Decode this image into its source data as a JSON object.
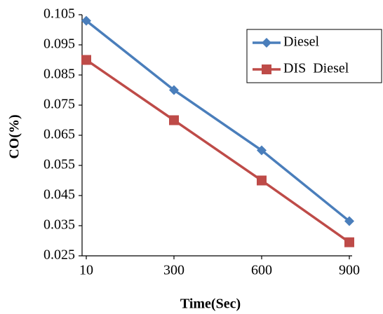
{
  "chart_data": {
    "type": "line",
    "x_label": "Time(Sec)",
    "y_label": "CO(%)",
    "categories": [
      "10",
      "300",
      "600",
      "900"
    ],
    "series": [
      {
        "name": "Diesel",
        "color": "#4a7ebb",
        "marker": "diamond",
        "values": [
          0.103,
          0.08,
          0.06,
          0.0365
        ]
      },
      {
        "name": "DIS  Diesel",
        "color": "#be4b48",
        "marker": "square",
        "values": [
          0.09,
          0.07,
          0.05,
          0.0295
        ]
      }
    ],
    "ylim": [
      0.025,
      0.105
    ],
    "yticks": [
      0.025,
      0.035,
      0.045,
      0.055,
      0.065,
      0.075,
      0.085,
      0.095,
      0.105
    ],
    "legend": "upper right"
  }
}
